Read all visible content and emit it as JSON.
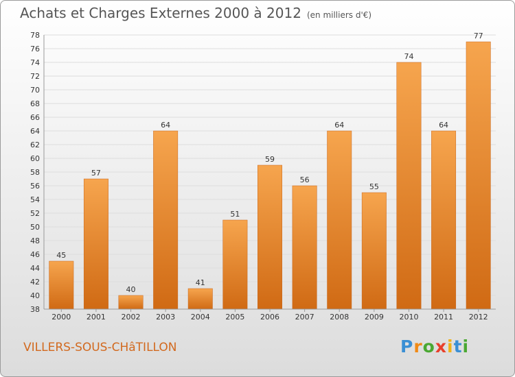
{
  "header": {
    "title": "Achats et Charges Externes 2000 à 2012",
    "unit": "(en milliers d'€)"
  },
  "footer": {
    "commune": "VILLERS-SOUS-CHâTILLON",
    "logo_letters": [
      "P",
      "r",
      "o",
      "x",
      "i",
      "t",
      "i"
    ]
  },
  "colors": {
    "bar_light": "#f6a54e",
    "bar_dark": "#d06a14",
    "text": "#555555",
    "commune": "#d2691e",
    "logo": [
      "#3a8fd4",
      "#f08a16",
      "#4aa832",
      "#e8402c",
      "#f0b21a",
      "#3a8fd4",
      "#4aa832"
    ]
  },
  "chart_data": {
    "type": "bar",
    "title": "Achats et Charges Externes 2000 à 2012",
    "subtitle": "(en milliers d'€)",
    "categories": [
      "2000",
      "2001",
      "2002",
      "2003",
      "2004",
      "2005",
      "2006",
      "2007",
      "2008",
      "2009",
      "2010",
      "2011",
      "2012"
    ],
    "values": [
      45,
      57,
      40,
      64,
      41,
      51,
      59,
      56,
      64,
      55,
      74,
      64,
      77
    ],
    "ylim": [
      38,
      78
    ],
    "yticks": [
      38,
      40,
      42,
      44,
      46,
      48,
      50,
      52,
      54,
      56,
      58,
      60,
      62,
      64,
      66,
      68,
      70,
      72,
      74,
      76,
      78
    ],
    "grid": true,
    "xlabel": "",
    "ylabel": ""
  }
}
